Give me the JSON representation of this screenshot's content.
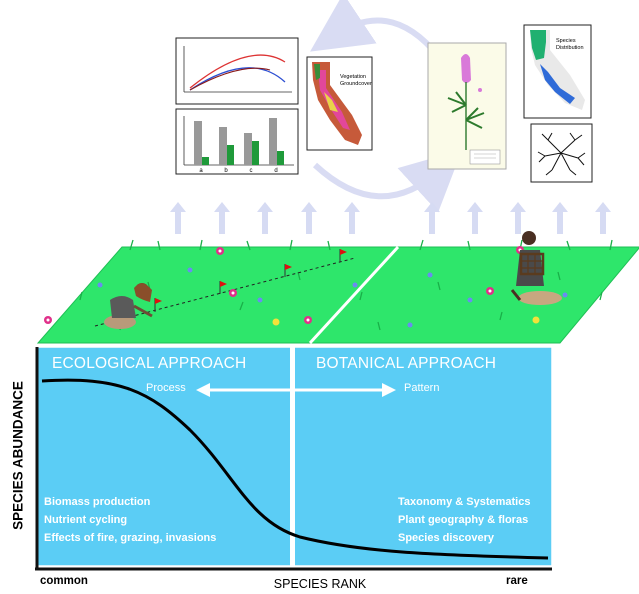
{
  "y_axis_label": "SPECIES ABUNDANCE",
  "x_axis_label": "SPECIES RANK",
  "x_axis_left": "common",
  "x_axis_right": "rare",
  "ecological": {
    "title": "ECOLOGICAL APPROACH",
    "arrow_label": "Process",
    "items": [
      "Biomass production",
      "Nutrient cycling",
      "Effects of fire, grazing, invasions"
    ]
  },
  "botanical": {
    "title": "BOTANICAL APPROACH",
    "arrow_label": "Pattern",
    "items": [
      "Taxonomy & Systematics",
      "Plant geography & floras",
      "Species discovery"
    ]
  },
  "insets": {
    "vegetation_map_label_1": "Vegetation",
    "vegetation_map_label_2": "Groundcover",
    "species_map_label_1": "Species",
    "species_map_label_2": "Distribution",
    "bar_labels": [
      "a",
      "b",
      "c",
      "d"
    ]
  },
  "colors": {
    "panel": "#5bcdf5",
    "grass": "#2ee66b",
    "cycle_arrow": "#d9dcf3",
    "up_arrow": "#d6dbf3",
    "curve": "#000000"
  }
}
